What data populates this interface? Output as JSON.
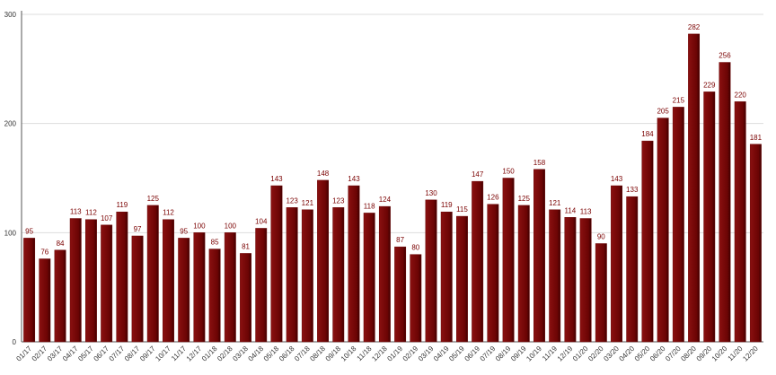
{
  "chart_data": {
    "type": "bar",
    "categories": [
      "01/17",
      "02/17",
      "03/17",
      "04/17",
      "05/17",
      "06/17",
      "07/17",
      "08/17",
      "09/17",
      "10/17",
      "11/17",
      "12/17",
      "01/18",
      "02/18",
      "03/18",
      "04/18",
      "05/18",
      "06/18",
      "07/18",
      "08/18",
      "09/18",
      "10/18",
      "11/18",
      "12/18",
      "01/19",
      "02/19",
      "03/19",
      "04/19",
      "05/19",
      "06/19",
      "07/19",
      "08/19",
      "09/19",
      "10/19",
      "11/19",
      "12/19",
      "01/20",
      "02/20",
      "03/20",
      "04/20",
      "05/20",
      "06/20",
      "07/20",
      "08/20",
      "09/20",
      "10/20",
      "11/20",
      "12/20"
    ],
    "values": [
      95,
      76,
      84,
      113,
      112,
      107,
      119,
      97,
      125,
      112,
      95,
      100,
      85,
      100,
      81,
      104,
      143,
      123,
      121,
      148,
      123,
      143,
      118,
      124,
      87,
      80,
      130,
      119,
      115,
      147,
      126,
      150,
      125,
      158,
      121,
      114,
      113,
      90,
      143,
      133,
      184,
      205,
      215,
      282,
      229,
      256,
      220,
      181
    ],
    "color": "#6b0404",
    "ylim": [
      0,
      300
    ],
    "yticks": [
      0,
      100,
      200,
      300
    ],
    "grid": true
  }
}
